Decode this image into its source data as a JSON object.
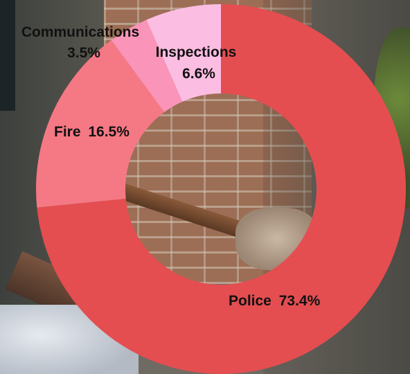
{
  "chart_data": {
    "type": "pie",
    "donut": true,
    "title": "",
    "slices": [
      {
        "label": "Police",
        "value": 73.4,
        "value_label": "73.4%",
        "color": "#e44e51"
      },
      {
        "label": "Fire",
        "value": 16.5,
        "value_label": "16.5%",
        "color": "#f57885"
      },
      {
        "label": "Communications",
        "value": 3.5,
        "value_label": "3.5%",
        "color": "#fa94b9"
      },
      {
        "label": "Inspections",
        "value": 6.6,
        "value_label": "6.6%",
        "color": "#fcbde2"
      }
    ],
    "legend": "none"
  }
}
